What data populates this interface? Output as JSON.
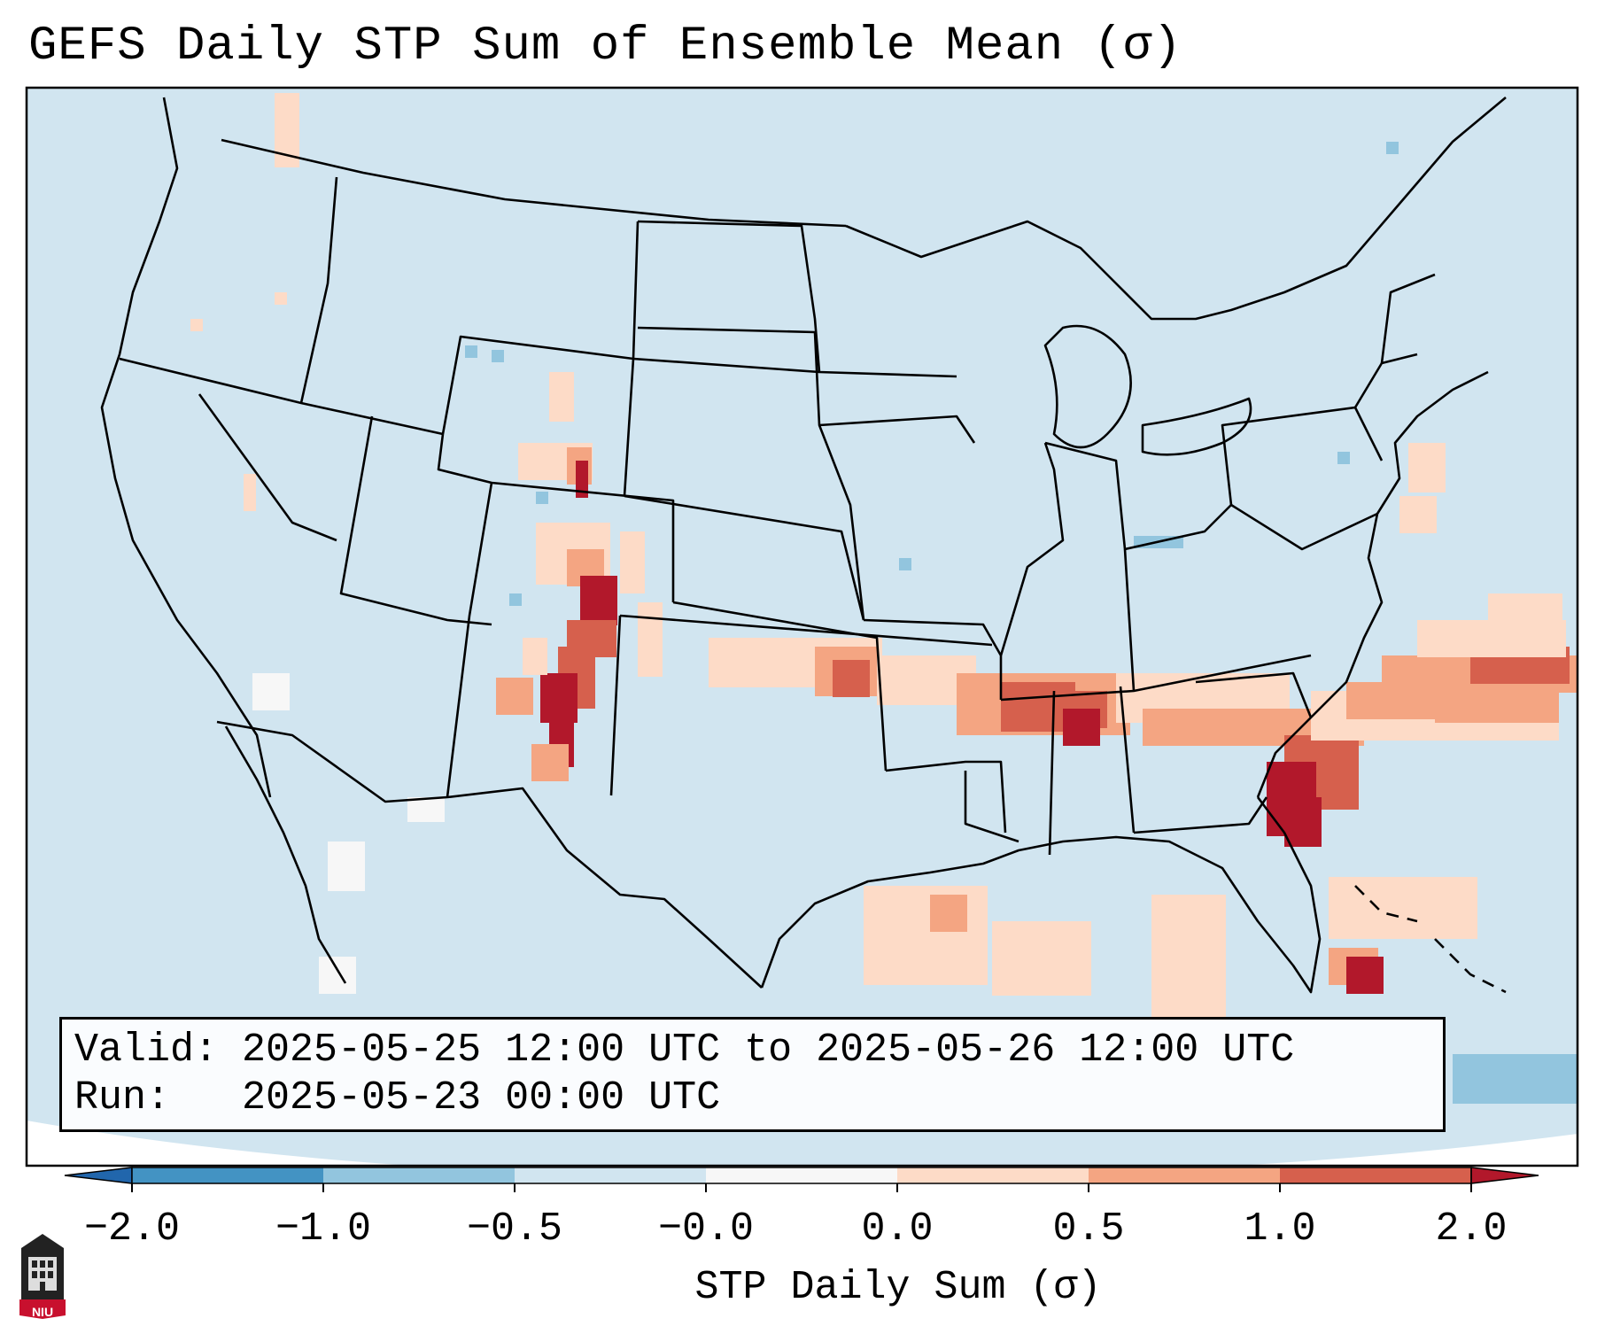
{
  "title": "GEFS Daily STP Sum of Ensemble Mean (σ)",
  "info": {
    "valid_label": "Valid:",
    "valid_value": "2025-05-25 12:00 UTC to 2025-05-26 12:00 UTC",
    "run_label": "Run:",
    "run_value": "2025-05-23 00:00 UTC"
  },
  "colorbar": {
    "label": "STP Daily Sum (σ)",
    "ticks": [
      "−2.0",
      "−1.0",
      "−0.5",
      "−0.0",
      "0.0",
      "0.5",
      "1.0",
      "2.0"
    ],
    "colors": {
      "under": "#2166ac",
      "bin_neg2_neg1": "#4393c3",
      "bin_neg1_neg05": "#92c5de",
      "bin_neg05_0": "#d1e5f0",
      "bin_0": "#f7f7f7",
      "bin_0_05": "#fddbc7",
      "bin_05_1": "#f4a582",
      "bin_1_2": "#d6604d",
      "over": "#b2182b"
    }
  },
  "map": {
    "background_color": "#d1e5f0",
    "border_color": "#000000",
    "high_areas": [
      "Eastern Colorado",
      "Eastern New Mexico",
      "Southeastern Wyoming",
      "Oklahoma-Arkansas",
      "Northern Mississippi-Alabama",
      "South Georgia-North Florida",
      "Atlantic east of Southeast coast",
      "Bahamas"
    ]
  },
  "logo": {
    "text": "NIU",
    "color": "#c8102e"
  }
}
